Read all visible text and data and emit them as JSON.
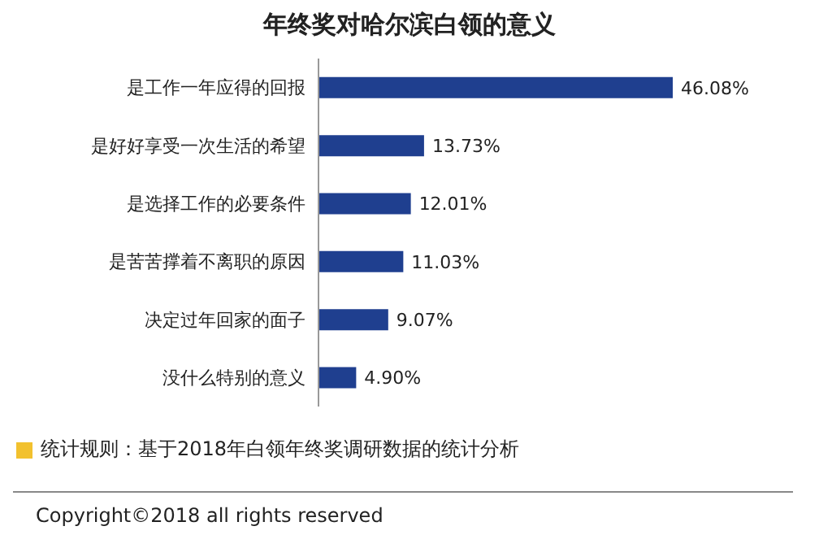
{
  "chart_data": {
    "type": "bar",
    "orientation": "horizontal",
    "title": "年终奖对哈尔滨白领的意义",
    "categories": [
      "是工作一年应得的回报",
      "是好好享受一次生活的希望",
      "是选择工作的必要条件",
      "是苦苦撑着不离职的原因",
      "决定过年回家的面子",
      "没什么特别的意义"
    ],
    "values": [
      46.08,
      13.73,
      12.01,
      11.03,
      9.07,
      4.9
    ],
    "value_labels": [
      "46.08%",
      "13.73%",
      "12.01%",
      "11.03%",
      "9.07%",
      "4.90%"
    ],
    "color": "#1f3f8f",
    "grid": false,
    "legend": false,
    "annotations": [
      "统计规则：基于2018年白领年终奖调研数据的统计分析",
      "Copyright©2018 all rights reserved"
    ]
  }
}
